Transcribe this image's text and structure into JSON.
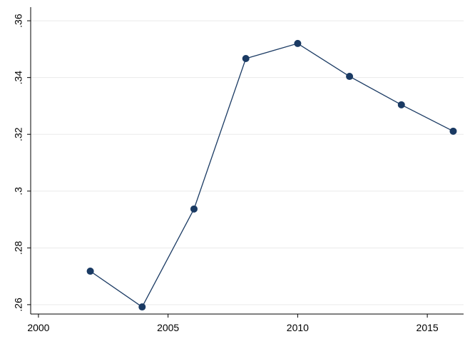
{
  "chart_data": {
    "type": "line",
    "x": [
      2002,
      2004,
      2006,
      2008,
      2010,
      2012,
      2014,
      2016
    ],
    "series": [
      {
        "color": "#1a3a63",
        "values": [
          0.2718,
          0.2592,
          0.2937,
          0.3467,
          0.352,
          0.3404,
          0.3304,
          0.3211
        ]
      }
    ],
    "xlim": [
      1999.7,
      2016.4
    ],
    "xticks": [
      2000,
      2005,
      2010,
      2015
    ],
    "ylim": [
      0.2567,
      0.3648
    ],
    "yticks": [
      {
        "value": 0.26,
        "label": ".26"
      },
      {
        "value": 0.28,
        "label": ".28"
      },
      {
        "value": 0.3,
        "label": ".3"
      },
      {
        "value": 0.32,
        "label": ".32"
      },
      {
        "value": 0.34,
        "label": ".34"
      },
      {
        "value": 0.36,
        "label": ".36"
      }
    ],
    "grid": true
  }
}
